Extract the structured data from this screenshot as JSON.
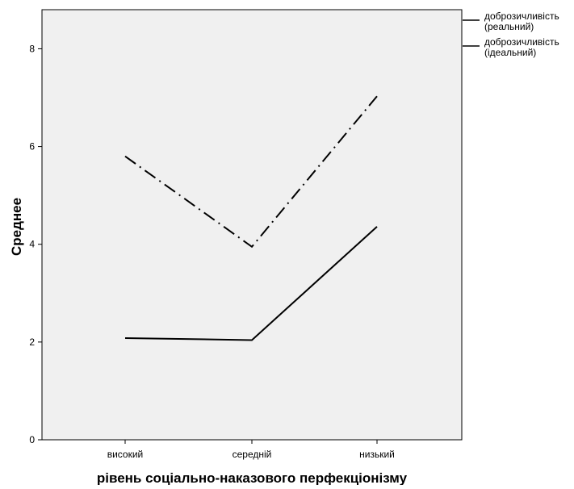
{
  "chart_data": {
    "type": "line",
    "title": "",
    "xlabel": "рівень соціально-наказового перфекціонізму",
    "ylabel": "Среднее",
    "categories": [
      "високий",
      "середній",
      "низький"
    ],
    "ylim": [
      0,
      8.8
    ],
    "yticks": [
      0,
      2,
      4,
      6,
      8
    ],
    "grid": false,
    "legend_position": "top-right, outside plot",
    "background_color": "#f0f0f0",
    "series": [
      {
        "name": "доброзичливість (реальний)",
        "name_lines": [
          "доброзичливість",
          "(реальний)"
        ],
        "values": [
          2.08,
          2.04,
          4.36
        ],
        "style": "solid",
        "color": "#000000"
      },
      {
        "name": "доброзичливість (ідеальний)",
        "name_lines": [
          "доброзичливість",
          "(ідеальний)"
        ],
        "values": [
          5.8,
          3.95,
          7.03
        ],
        "style": "dash-dot",
        "color": "#000000"
      }
    ]
  }
}
